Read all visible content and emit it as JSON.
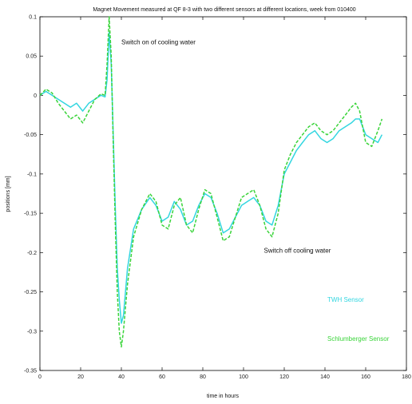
{
  "chart_data": {
    "type": "line",
    "title": "Magnet Movement measured at QF 8-3 with two different sensors at different locations, week from 010400",
    "xlabel": "time in hours",
    "ylabel": "positions [mm]",
    "xlim": [
      0,
      180
    ],
    "ylim": [
      -0.35,
      0.1
    ],
    "x_ticks": [
      0,
      20,
      40,
      60,
      80,
      100,
      120,
      140,
      160,
      180
    ],
    "y_ticks": [
      0.1,
      0.05,
      0,
      -0.05,
      -0.1,
      -0.15,
      -0.2,
      -0.25,
      -0.3,
      -0.35
    ],
    "x_tick_labels": [
      "0",
      "20",
      "40",
      "60",
      "80",
      "100",
      "120",
      "140",
      "160",
      "180"
    ],
    "y_tick_labels": [
      "0.1",
      "0.05",
      "0",
      "-0.05",
      "-0.1",
      "-0.15",
      "-0.2",
      "-0.25",
      "-0.3",
      "-0.35"
    ],
    "grid": false,
    "series": [
      {
        "name": "TWH Sensor",
        "color": "#33d6e0",
        "x": [
          0,
          3,
          6,
          9,
          12,
          15,
          18,
          21,
          24,
          27,
          30,
          32,
          33,
          34,
          35,
          36,
          37,
          38,
          39,
          40,
          41,
          43,
          46,
          50,
          54,
          57,
          60,
          63,
          66,
          69,
          72,
          75,
          78,
          81,
          84,
          87,
          90,
          93,
          96,
          99,
          102,
          105,
          108,
          111,
          114,
          117,
          120,
          123,
          126,
          129,
          132,
          135,
          138,
          141,
          144,
          147,
          150,
          153,
          155,
          157,
          160,
          163,
          166,
          168
        ],
        "y": [
          0.0,
          0.005,
          0.0,
          -0.005,
          -0.01,
          -0.015,
          -0.01,
          -0.02,
          -0.01,
          -0.005,
          0.0,
          -0.002,
          0.02,
          0.08,
          0.04,
          -0.05,
          -0.14,
          -0.22,
          -0.26,
          -0.29,
          -0.28,
          -0.22,
          -0.17,
          -0.145,
          -0.13,
          -0.14,
          -0.16,
          -0.155,
          -0.135,
          -0.145,
          -0.165,
          -0.16,
          -0.14,
          -0.125,
          -0.13,
          -0.15,
          -0.175,
          -0.17,
          -0.155,
          -0.14,
          -0.135,
          -0.13,
          -0.14,
          -0.16,
          -0.165,
          -0.14,
          -0.1,
          -0.085,
          -0.07,
          -0.06,
          -0.05,
          -0.045,
          -0.055,
          -0.06,
          -0.055,
          -0.045,
          -0.04,
          -0.035,
          -0.03,
          -0.03,
          -0.05,
          -0.055,
          -0.06,
          -0.05
        ]
      },
      {
        "name": "Schlumberger Sensor",
        "color": "#3ad43a",
        "x": [
          0,
          3,
          6,
          9,
          12,
          15,
          18,
          21,
          24,
          27,
          30,
          32,
          33,
          34,
          35,
          36,
          37,
          38,
          39,
          40,
          41,
          43,
          46,
          50,
          54,
          57,
          60,
          63,
          66,
          69,
          72,
          75,
          78,
          81,
          84,
          87,
          90,
          93,
          96,
          99,
          102,
          105,
          108,
          111,
          114,
          117,
          120,
          123,
          126,
          129,
          132,
          135,
          138,
          141,
          144,
          147,
          150,
          153,
          155,
          157,
          160,
          163,
          166,
          168
        ],
        "y": [
          0.0,
          0.008,
          0.003,
          -0.01,
          -0.02,
          -0.03,
          -0.025,
          -0.035,
          -0.02,
          -0.005,
          0.002,
          0.0,
          0.04,
          0.1,
          0.05,
          -0.06,
          -0.16,
          -0.25,
          -0.3,
          -0.32,
          -0.3,
          -0.24,
          -0.18,
          -0.145,
          -0.125,
          -0.135,
          -0.165,
          -0.17,
          -0.14,
          -0.13,
          -0.165,
          -0.175,
          -0.145,
          -0.12,
          -0.125,
          -0.155,
          -0.185,
          -0.18,
          -0.155,
          -0.13,
          -0.125,
          -0.12,
          -0.14,
          -0.17,
          -0.18,
          -0.15,
          -0.095,
          -0.075,
          -0.06,
          -0.05,
          -0.04,
          -0.035,
          -0.045,
          -0.05,
          -0.045,
          -0.035,
          -0.025,
          -0.015,
          -0.01,
          -0.02,
          -0.06,
          -0.065,
          -0.045,
          -0.03
        ]
      }
    ],
    "legend": {
      "placement": "bottom-right",
      "entries": [
        "TWH Sensor",
        "Schlumberger Sensor"
      ]
    },
    "annotations": [
      {
        "text": "Switch on of cooling water",
        "x": 40,
        "y": 0.065
      },
      {
        "text": "Switch off cooling water",
        "x": 110,
        "y": -0.2
      }
    ]
  }
}
